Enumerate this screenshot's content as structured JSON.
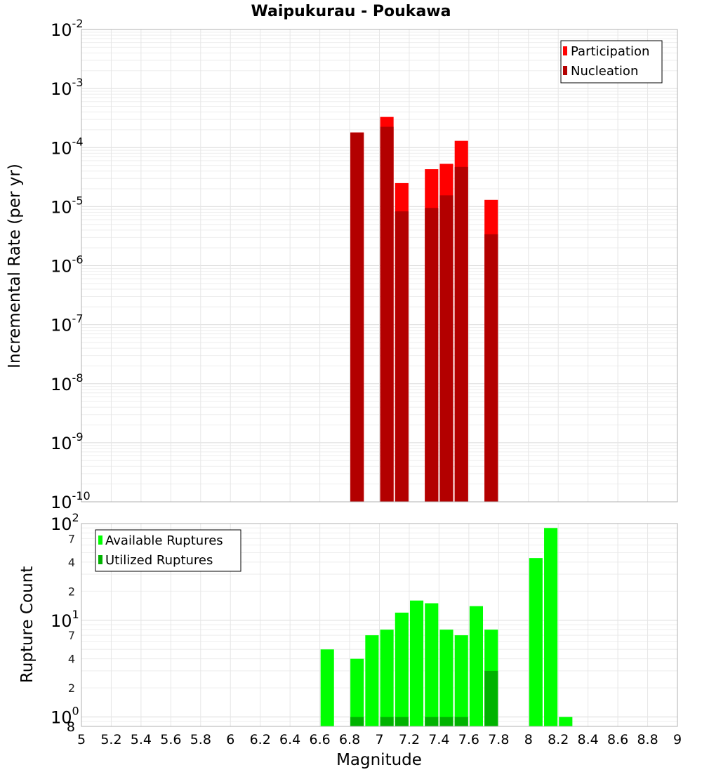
{
  "chart_data": [
    {
      "id": "rate",
      "type": "bar",
      "title": "Waipukurau - Poukawa",
      "ylabel": "Incremental Rate (per yr)",
      "xlabel": "",
      "yscale": "log",
      "ylim": [
        1e-10,
        0.01
      ],
      "xlim": [
        5,
        9
      ],
      "y_ticks": [
        {
          "base": "10",
          "exp": "-10"
        },
        {
          "base": "10",
          "exp": "-9"
        },
        {
          "base": "10",
          "exp": "-8"
        },
        {
          "base": "10",
          "exp": "-7"
        },
        {
          "base": "10",
          "exp": "-6"
        },
        {
          "base": "10",
          "exp": "-5"
        },
        {
          "base": "10",
          "exp": "-4"
        },
        {
          "base": "10",
          "exp": "-3"
        },
        {
          "base": "10",
          "exp": "-2"
        }
      ],
      "legend_position": "top-right",
      "series": [
        {
          "name": "Participation",
          "color": "#ff0000",
          "x": [
            6.85,
            7.05,
            7.15,
            7.35,
            7.45,
            7.55,
            7.75
          ],
          "values": [
            0.00018,
            0.00033,
            2.5e-05,
            4.3e-05,
            5.3e-05,
            0.00013,
            1.3e-05
          ]
        },
        {
          "name": "Nucleation",
          "color": "#b30000",
          "x": [
            6.85,
            7.05,
            7.15,
            7.35,
            7.45,
            7.55,
            7.75
          ],
          "values": [
            0.00018,
            0.000225,
            8.3e-06,
            9.5e-06,
            1.55e-05,
            4.7e-05,
            3.4e-06
          ]
        }
      ]
    },
    {
      "id": "count",
      "type": "bar",
      "title": "",
      "ylabel": "Rupture Count",
      "xlabel": "Magnitude",
      "yscale": "log",
      "ylim": [
        0.8,
        100
      ],
      "xlim": [
        5,
        9
      ],
      "x_tick_labels": [
        "5",
        "5.2",
        "5.4",
        "5.6",
        "5.8",
        "6",
        "6.2",
        "6.4",
        "6.6",
        "6.8",
        "7",
        "7.2",
        "7.4",
        "7.6",
        "7.8",
        "8",
        "8.2",
        "8.4",
        "8.6",
        "8.8",
        "9"
      ],
      "y_major_ticks": [
        {
          "base": "10",
          "exp": "0"
        },
        {
          "base": "10",
          "exp": "1"
        },
        {
          "base": "10",
          "exp": "2"
        }
      ],
      "y_minor_labels": [
        "2",
        "4",
        "7",
        "2",
        "4",
        "7"
      ],
      "y_bottom_label": "8",
      "legend_position": "top-left",
      "series": [
        {
          "name": "Available Ruptures",
          "color": "#00ff00",
          "x": [
            6.65,
            6.85,
            6.95,
            7.05,
            7.15,
            7.25,
            7.35,
            7.45,
            7.55,
            7.65,
            7.75,
            8.05,
            8.15,
            8.25
          ],
          "values": [
            5,
            4,
            7,
            8,
            12,
            16,
            15,
            8,
            7,
            14,
            8,
            44,
            90,
            1
          ]
        },
        {
          "name": "Utilized Ruptures",
          "color": "#00b300",
          "x": [
            6.85,
            7.05,
            7.15,
            7.35,
            7.45,
            7.55,
            7.75
          ],
          "values": [
            1,
            1,
            1,
            1,
            1,
            1,
            3
          ]
        }
      ]
    }
  ]
}
